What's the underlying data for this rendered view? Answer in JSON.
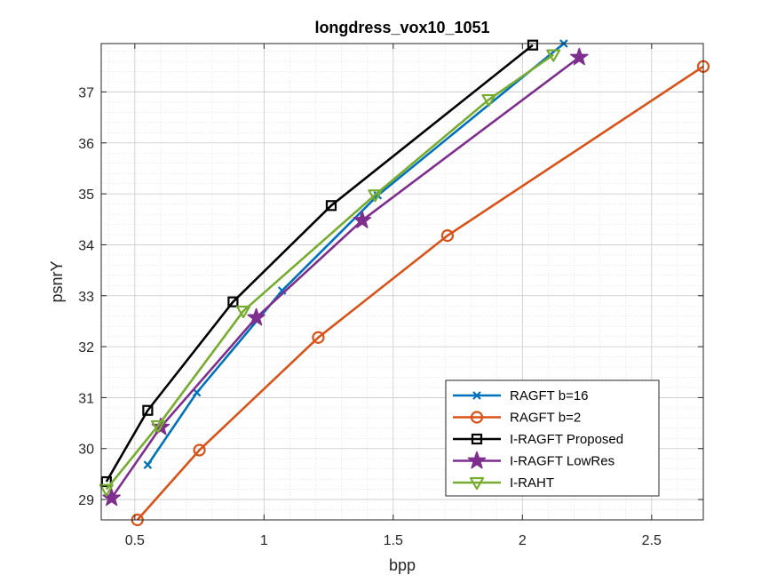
{
  "chart_data": {
    "type": "line",
    "title": "longdress_vox10_1051",
    "xlabel": "bpp",
    "ylabel": "psnrY",
    "xlim": [
      0.37,
      2.7
    ],
    "ylim": [
      28.6,
      37.95
    ],
    "xticks": [
      0.5,
      1,
      1.5,
      2,
      2.5
    ],
    "xtick_labels": [
      "0.5",
      "1",
      "1.5",
      "2",
      "2.5"
    ],
    "yticks": [
      29,
      30,
      31,
      32,
      33,
      34,
      35,
      36,
      37
    ],
    "ytick_labels": [
      "29",
      "30",
      "31",
      "32",
      "33",
      "34",
      "35",
      "36",
      "37"
    ],
    "grid": true,
    "minor_grid": true,
    "legend_position": "bottom-right",
    "series": [
      {
        "name": "RAGFT b=16",
        "color": "#0072BD",
        "marker": "x",
        "x": [
          0.55,
          0.74,
          1.07,
          1.44,
          2.16
        ],
        "y": [
          29.68,
          31.1,
          33.1,
          34.97,
          37.95
        ]
      },
      {
        "name": "RAGFT b=2",
        "color": "#D95319",
        "marker": "circle",
        "x": [
          0.51,
          0.75,
          1.21,
          1.71,
          2.7
        ],
        "y": [
          28.6,
          29.97,
          32.18,
          34.18,
          37.5
        ]
      },
      {
        "name": "I-RAGFT Proposed",
        "color": "#000000",
        "marker": "square",
        "x": [
          0.39,
          0.55,
          0.88,
          1.26,
          2.04
        ],
        "y": [
          29.35,
          30.75,
          32.88,
          34.77,
          37.92
        ]
      },
      {
        "name": "I-RAGFT LowRes",
        "color": "#7E2F8E",
        "marker": "star",
        "x": [
          0.41,
          0.6,
          0.97,
          1.38,
          2.22
        ],
        "y": [
          29.03,
          30.42,
          32.57,
          34.48,
          37.68
        ]
      },
      {
        "name": "I-RAHT",
        "color": "#77AC30",
        "marker": "triangle-down",
        "x": [
          0.39,
          0.59,
          0.92,
          1.43,
          1.87,
          2.12
        ],
        "y": [
          29.2,
          30.45,
          32.7,
          34.98,
          36.85,
          37.73
        ]
      }
    ]
  }
}
